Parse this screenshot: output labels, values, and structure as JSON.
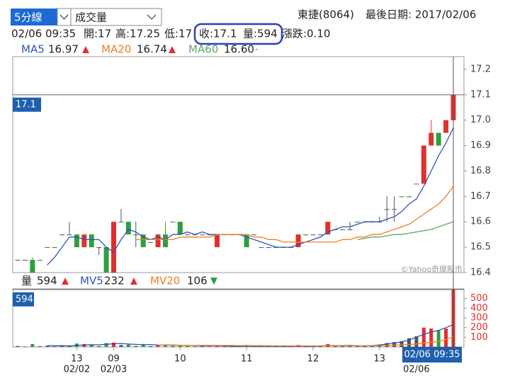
{
  "controls": {
    "period": "5分線",
    "indicator": "成交量"
  },
  "chart_data": [
    {
      "type": "candlestick",
      "title": "東捷(8064)",
      "subtitle": "最後日期: 2017/02/06",
      "info": [
        "02/06 09:35",
        "開:17",
        "高:17.25",
        "低:17",
        "收:17.1",
        "量:594",
        "漲跌:0.10"
      ],
      "categories": [
        null,
        null,
        null,
        null,
        null,
        null,
        null,
        null,
        "13",
        null,
        null,
        null,
        null,
        "09",
        null,
        null,
        null,
        null,
        null,
        null,
        null,
        null,
        "10",
        null,
        null,
        null,
        null,
        null,
        null,
        null,
        null,
        "11",
        null,
        null,
        null,
        null,
        null,
        null,
        null,
        null,
        "12",
        null,
        null,
        null,
        null,
        null,
        null,
        null,
        null,
        "13",
        null,
        null,
        null,
        null,
        null,
        null,
        null,
        null,
        null,
        null
      ],
      "category_dates": [
        null,
        null,
        null,
        null,
        null,
        null,
        null,
        null,
        "02/02",
        null,
        null,
        null,
        null,
        "02/03",
        null,
        null,
        null,
        null,
        null,
        null,
        null,
        null,
        null,
        null,
        null,
        null,
        null,
        null,
        null,
        null,
        null,
        null,
        null,
        null,
        null,
        null,
        null,
        null,
        null,
        null,
        null,
        null,
        null,
        null,
        null,
        null,
        null,
        null,
        null,
        null,
        null,
        null,
        null,
        null,
        "02/06",
        null,
        null,
        null,
        null,
        null
      ],
      "open": [
        16.45,
        16.45,
        16.45,
        16.45,
        16.5,
        16.5,
        16.55,
        16.55,
        16.55,
        16.5,
        16.55,
        16.5,
        16.5,
        16.4,
        16.6,
        16.6,
        16.55,
        16.55,
        16.52,
        16.5,
        16.55,
        16.6,
        16.6,
        16.55,
        16.55,
        16.55,
        16.55,
        16.5,
        16.55,
        16.55,
        16.55,
        16.55,
        16.55,
        16.5,
        16.5,
        16.5,
        16.5,
        16.5,
        16.5,
        16.55,
        16.55,
        16.55,
        16.55,
        16.57,
        16.57,
        16.57,
        16.6,
        16.6,
        16.6,
        16.6,
        16.65,
        16.65,
        16.7,
        16.7,
        16.75,
        16.75,
        16.9,
        16.95,
        16.95,
        17
      ],
      "high": [
        16.45,
        16.45,
        16.46,
        16.45,
        16.5,
        16.5,
        16.55,
        16.6,
        16.55,
        16.55,
        16.55,
        16.5,
        16.5,
        16.6,
        16.65,
        16.6,
        16.6,
        16.55,
        16.52,
        16.55,
        16.6,
        16.6,
        16.6,
        16.55,
        16.55,
        16.55,
        16.55,
        16.55,
        16.55,
        16.55,
        16.55,
        16.55,
        16.55,
        16.5,
        16.5,
        16.5,
        16.5,
        16.5,
        16.55,
        16.55,
        16.55,
        16.55,
        16.6,
        16.57,
        16.57,
        16.6,
        16.6,
        16.6,
        16.6,
        16.62,
        16.7,
        16.7,
        16.7,
        16.7,
        16.75,
        16.9,
        17,
        16.95,
        17,
        17.25
      ],
      "low": [
        16.45,
        16.45,
        16.4,
        16.45,
        16.5,
        16.5,
        16.55,
        16.55,
        16.5,
        16.5,
        16.5,
        16.47,
        16.4,
        16.4,
        16.6,
        16.55,
        16.5,
        16.5,
        16.52,
        16.5,
        16.5,
        16.6,
        16.55,
        16.55,
        16.55,
        16.55,
        16.55,
        16.5,
        16.55,
        16.55,
        16.55,
        16.5,
        16.55,
        16.5,
        16.5,
        16.5,
        16.5,
        16.5,
        16.5,
        16.55,
        16.55,
        16.55,
        16.55,
        16.57,
        16.57,
        16.57,
        16.6,
        16.6,
        16.6,
        16.6,
        16.6,
        16.6,
        16.7,
        16.7,
        16.75,
        16.75,
        16.9,
        16.9,
        16.95,
        17
      ],
      "close": [
        16.45,
        16.45,
        16.4,
        16.45,
        16.5,
        16.5,
        16.55,
        16.55,
        16.5,
        16.55,
        16.5,
        16.5,
        16.4,
        16.6,
        16.6,
        16.55,
        16.55,
        16.5,
        16.52,
        16.55,
        16.5,
        16.6,
        16.55,
        16.55,
        16.55,
        16.55,
        16.55,
        16.55,
        16.55,
        16.55,
        16.55,
        16.5,
        16.55,
        16.5,
        16.5,
        16.5,
        16.5,
        16.5,
        16.55,
        16.55,
        16.55,
        16.55,
        16.6,
        16.57,
        16.57,
        16.57,
        16.6,
        16.6,
        16.6,
        16.6,
        16.65,
        16.65,
        16.7,
        16.7,
        16.75,
        16.9,
        16.95,
        16.9,
        17,
        17.1
      ],
      "up_color": "#e0302d",
      "down_color": "#2e9e3e",
      "flat_color": "#555555",
      "series": [
        {
          "name": "MA5",
          "color": "#2a55b8",
          "legend_value": "16.97",
          "trend": "▲",
          "trend_color": "#e0302d",
          "values": [
            null,
            null,
            null,
            null,
            16.43,
            16.46,
            16.5,
            16.54,
            16.54,
            16.53,
            16.53,
            16.53,
            16.5,
            16.48,
            16.53,
            16.57,
            16.56,
            16.54,
            16.53,
            16.54,
            16.53,
            16.55,
            16.55,
            16.56,
            16.55,
            16.56,
            16.55,
            16.55,
            16.55,
            16.55,
            16.55,
            16.54,
            16.53,
            16.52,
            16.51,
            16.5,
            16.5,
            16.5,
            16.51,
            16.52,
            16.53,
            16.54,
            16.56,
            16.57,
            16.58,
            16.58,
            16.59,
            16.6,
            16.6,
            16.6,
            16.61,
            16.62,
            16.64,
            16.67,
            16.69,
            16.74,
            16.8,
            16.86,
            16.91,
            16.97
          ]
        },
        {
          "name": "MA20",
          "color": "#ef7d22",
          "legend_value": "16.74",
          "trend": "▲",
          "trend_color": "#e0302d",
          "values": [
            null,
            null,
            null,
            null,
            null,
            null,
            null,
            null,
            null,
            null,
            null,
            null,
            null,
            null,
            null,
            null,
            16.53,
            16.53,
            16.53,
            16.53,
            16.53,
            16.53,
            16.54,
            16.54,
            16.54,
            16.54,
            16.54,
            16.55,
            16.55,
            16.55,
            16.55,
            16.55,
            16.54,
            16.54,
            16.53,
            16.53,
            16.52,
            16.52,
            16.52,
            16.52,
            16.52,
            16.52,
            16.52,
            16.52,
            16.53,
            16.53,
            16.54,
            16.54,
            16.55,
            16.55,
            16.56,
            16.57,
            16.58,
            16.59,
            16.61,
            16.63,
            16.65,
            16.67,
            16.7,
            16.74
          ]
        },
        {
          "name": "MA60",
          "color": "#5aa865",
          "legend_value": "16.60",
          "trend": "-",
          "trend_color": "#888888",
          "values": [
            null,
            null,
            null,
            null,
            null,
            null,
            null,
            null,
            null,
            null,
            null,
            null,
            null,
            null,
            null,
            null,
            null,
            null,
            null,
            null,
            null,
            null,
            null,
            null,
            null,
            null,
            null,
            null,
            null,
            null,
            null,
            null,
            null,
            null,
            null,
            null,
            null,
            null,
            null,
            null,
            null,
            null,
            null,
            null,
            null,
            null,
            16.53,
            16.535,
            16.54,
            16.54,
            16.545,
            16.55,
            16.55,
            16.555,
            16.56,
            16.565,
            16.57,
            16.58,
            16.59,
            16.6
          ]
        }
      ],
      "ylim": [
        16.4,
        17.25
      ],
      "yticks": [
        16.4,
        16.5,
        16.6,
        16.7,
        16.8,
        16.9,
        {
          "value": 17,
          "label": "17.0"
        },
        17.1,
        17.2
      ],
      "tick_color": "#444444",
      "current": 17.1,
      "watermark": "©Yahoo奇摩股市"
    },
    {
      "type": "bar",
      "name": "量",
      "legend_value": "594",
      "trend": "▲",
      "trend_color": "#e0302d",
      "values": [
        10,
        5,
        30,
        8,
        12,
        6,
        10,
        15,
        35,
        30,
        25,
        8,
        40,
        45,
        20,
        25,
        10,
        30,
        8,
        20,
        25,
        10,
        20,
        8,
        6,
        10,
        5,
        15,
        6,
        8,
        5,
        20,
        10,
        6,
        5,
        8,
        5,
        6,
        20,
        8,
        6,
        10,
        30,
        10,
        8,
        12,
        8,
        10,
        15,
        20,
        40,
        50,
        60,
        90,
        110,
        200,
        190,
        170,
        190,
        594
      ],
      "series": [
        {
          "name": "MV5",
          "color": "#2a55b8",
          "legend_value": "232",
          "trend": "▲",
          "trend_color": "#e0302d",
          "values": [
            null,
            null,
            null,
            null,
            13,
            12,
            13,
            10,
            16,
            19,
            23,
            22,
            28,
            32,
            36,
            30,
            26,
            22,
            25,
            19,
            19,
            20,
            17,
            15,
            15,
            12,
            11,
            13,
            10,
            9,
            7,
            8,
            7,
            9,
            9,
            9,
            8,
            8,
            9,
            8,
            8,
            10,
            14,
            14,
            14,
            15,
            12,
            11,
            13,
            21,
            30,
            40,
            52,
            70,
            102,
            130,
            154,
            172,
            200,
            232
          ]
        },
        {
          "name": "MV20",
          "color": "#ef7d22",
          "legend_value": "106",
          "trend": "▼",
          "trend_color": "#2e9e3e",
          "values": [
            null,
            null,
            null,
            null,
            null,
            null,
            null,
            null,
            null,
            null,
            null,
            null,
            null,
            null,
            null,
            null,
            null,
            null,
            null,
            18,
            18,
            18,
            17,
            17,
            17,
            16,
            16,
            15,
            15,
            15,
            14,
            14,
            13,
            13,
            12,
            12,
            12,
            11,
            11,
            11,
            11,
            12,
            12,
            12,
            12,
            12,
            12,
            12,
            13,
            14,
            16,
            18,
            21,
            25,
            31,
            40,
            49,
            58,
            77,
            106
          ]
        }
      ],
      "ylim": [
        0,
        600
      ],
      "yticks": [
        100,
        200,
        300,
        400,
        500
      ],
      "tick_color": "#e0302d",
      "current": 594,
      "crosshair_label": "02/06 09:35"
    }
  ]
}
